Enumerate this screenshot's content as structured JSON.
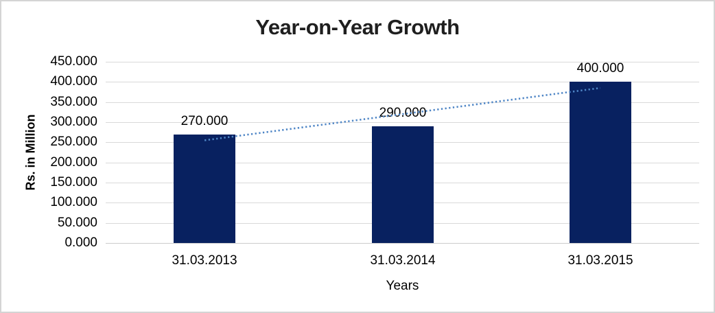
{
  "frame": {
    "background": "#ffffff",
    "border_color": "#d4d4d4"
  },
  "chart_data": {
    "type": "bar",
    "title": "Year-on-Year Growth",
    "categories": [
      "31.03.2013",
      "31.03.2014",
      "31.03.2015"
    ],
    "values": [
      270,
      290,
      400
    ],
    "data_labels": [
      "270.000",
      "290.000",
      "400.000"
    ],
    "xlabel": "Years",
    "ylabel": "Rs. in Million",
    "ylim": [
      0,
      450
    ],
    "ytick_step": 50,
    "ytick_labels": [
      "0.000",
      "50.000",
      "100.000",
      "150.000",
      "200.000",
      "250.000",
      "300.000",
      "350.000",
      "400.000",
      "450.000"
    ],
    "grid": "horizontal",
    "legend": "none",
    "bar_color": "#082160",
    "gridline_color": "#d9d9d9",
    "trendline": {
      "style": "dotted",
      "color": "#4f86c6",
      "start_value": 255,
      "end_value": 385
    }
  }
}
